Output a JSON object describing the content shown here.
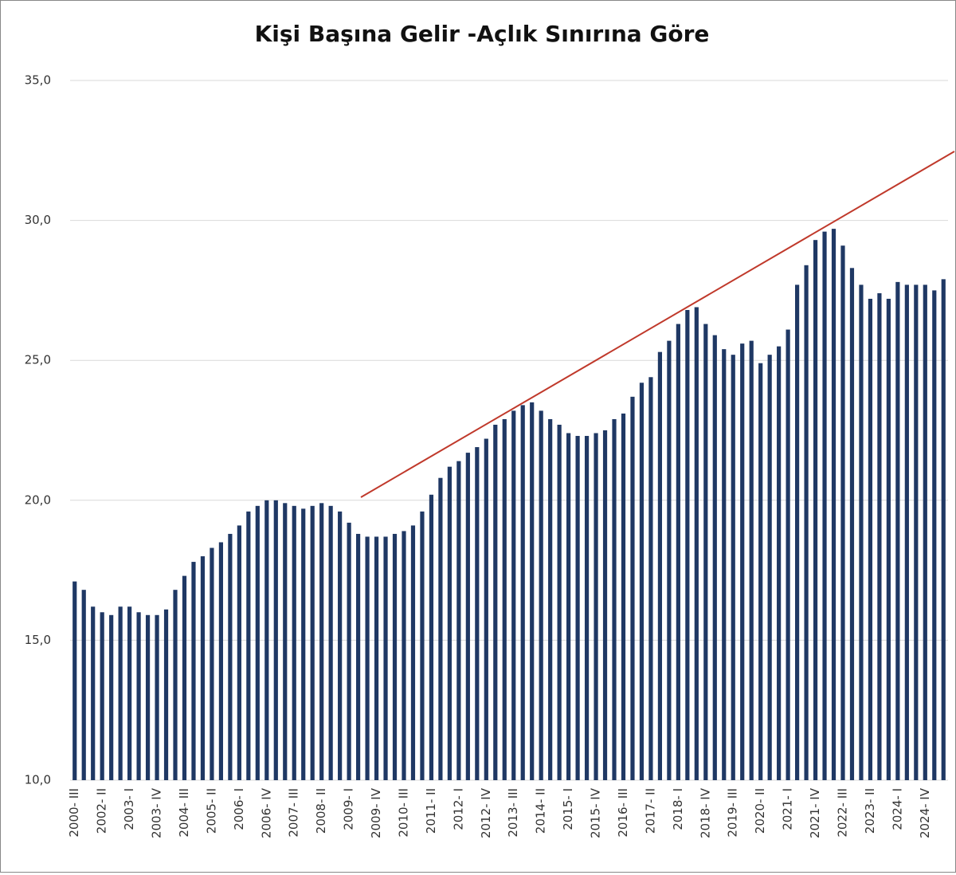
{
  "chart_data": {
    "type": "bar",
    "title": "Kişi Başına Gelir -Açlık Sınırına Göre",
    "categories": [
      "2000- III",
      null,
      null,
      "2002- II",
      null,
      null,
      "2003- I",
      null,
      null,
      "2003- IV",
      null,
      null,
      "2004- III",
      null,
      null,
      "2005- II",
      null,
      null,
      "2006- I",
      null,
      null,
      "2006- IV",
      null,
      null,
      "2007- III",
      null,
      null,
      "2008- II",
      null,
      null,
      "2009- I",
      null,
      null,
      "2009- IV",
      null,
      null,
      "2010- III",
      null,
      null,
      "2011- II",
      null,
      null,
      "2012- I",
      null,
      null,
      "2012- IV",
      null,
      null,
      "2013- III",
      null,
      null,
      "2014- II",
      null,
      null,
      "2015- I",
      null,
      null,
      "2015- IV",
      null,
      null,
      "2016- III",
      null,
      null,
      "2017- II",
      null,
      null,
      "2018- I",
      null,
      null,
      "2018- IV",
      null,
      null,
      "2019- III",
      null,
      null,
      "2020- II",
      null,
      null,
      "2021- I",
      null,
      null,
      "2021- IV",
      null,
      null,
      "2022- III",
      null,
      null,
      "2023- II",
      null,
      null,
      "2024- I",
      null,
      null,
      "2024- IV",
      null,
      null
    ],
    "values": [
      17.1,
      16.8,
      16.2,
      16.0,
      15.9,
      16.2,
      16.2,
      16.0,
      15.9,
      15.9,
      16.1,
      16.8,
      17.3,
      17.8,
      18.0,
      18.3,
      18.5,
      18.8,
      19.1,
      19.6,
      19.8,
      20.0,
      20.0,
      19.9,
      19.8,
      19.7,
      19.8,
      19.9,
      19.8,
      19.6,
      19.2,
      18.8,
      18.7,
      18.7,
      18.7,
      18.8,
      18.9,
      19.1,
      19.6,
      20.2,
      20.8,
      21.2,
      21.4,
      21.7,
      21.9,
      22.2,
      22.7,
      22.9,
      23.2,
      23.4,
      23.5,
      23.2,
      22.9,
      22.7,
      22.4,
      22.3,
      22.3,
      22.4,
      22.5,
      22.9,
      23.1,
      23.7,
      24.2,
      24.4,
      25.3,
      25.7,
      26.3,
      26.8,
      26.9,
      26.3,
      25.9,
      25.4,
      25.2,
      25.6,
      25.7,
      24.9,
      25.2,
      25.5,
      26.1,
      27.7,
      28.4,
      29.3,
      29.6,
      29.7,
      29.1,
      28.3,
      27.7,
      27.2,
      27.4,
      27.2,
      27.8,
      27.7,
      27.7,
      27.7,
      27.5,
      27.9
    ],
    "color": "#1f3864",
    "ylim": [
      10,
      35
    ],
    "yticks": [
      {
        "value": 10,
        "label": "10,0"
      },
      {
        "value": 15,
        "label": "15,0"
      },
      {
        "value": 20,
        "label": "20,0"
      },
      {
        "value": 25,
        "label": "25,0"
      },
      {
        "value": 30,
        "label": "30,0"
      },
      {
        "value": 35,
        "label": "35,0"
      }
    ],
    "grid": true
  }
}
